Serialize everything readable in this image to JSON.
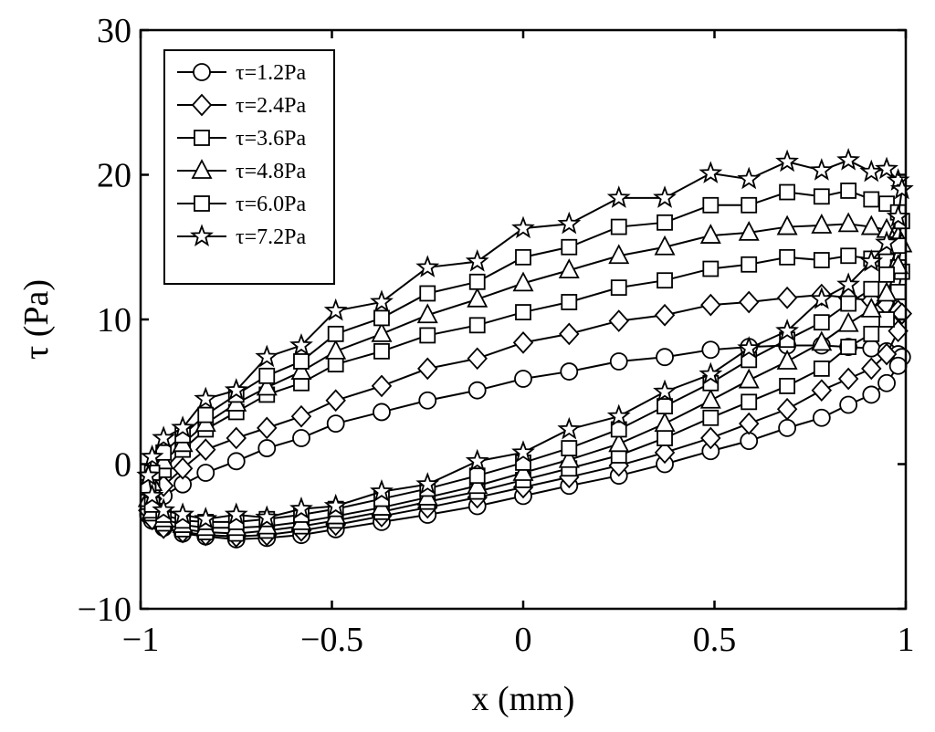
{
  "chart_data": {
    "type": "line",
    "title": "",
    "xlabel": "x (mm)",
    "ylabel": "τ (Pa)",
    "xlim": [
      -1,
      1
    ],
    "ylim": [
      -10,
      30
    ],
    "xticks": [
      -1,
      -0.5,
      0,
      0.5,
      1
    ],
    "xtick_labels": [
      "−1",
      "−0.5",
      "0",
      "0.5",
      "1"
    ],
    "yticks": [
      -10,
      0,
      10,
      20,
      30
    ],
    "ytick_labels": [
      "−10",
      "0",
      "10",
      "20",
      "30"
    ],
    "grid": false,
    "legend_position": "top-left",
    "x": [
      -0.98,
      -0.97,
      -0.94,
      -0.89,
      -0.83,
      -0.75,
      -0.67,
      -0.58,
      -0.49,
      -0.37,
      -0.25,
      -0.12,
      0.0,
      0.12,
      0.25,
      0.37,
      0.49,
      0.59,
      0.69,
      0.78,
      0.85,
      0.91,
      0.95,
      0.98,
      0.99,
      0.98,
      0.95,
      0.91,
      0.85,
      0.78,
      0.69,
      0.59,
      0.49,
      0.37,
      0.25,
      0.12,
      0.0,
      -0.12,
      -0.25,
      -0.37,
      -0.49,
      -0.58,
      -0.67,
      -0.75,
      -0.83,
      -0.89,
      -0.94,
      -0.97,
      -0.98
    ],
    "series": [
      {
        "name": "τ=1.2Pa",
        "marker": "circle",
        "values": [
          -3.5,
          -2.8,
          -2.2,
          -1.4,
          -0.6,
          0.2,
          1.1,
          1.8,
          2.8,
          3.6,
          4.4,
          5.1,
          5.9,
          6.4,
          7.1,
          7.4,
          7.9,
          8.1,
          8.2,
          8.2,
          8.1,
          8.0,
          7.8,
          7.6,
          7.4,
          6.8,
          5.6,
          4.8,
          4.1,
          3.2,
          2.5,
          1.6,
          0.9,
          0.0,
          -0.8,
          -1.5,
          -2.2,
          -2.9,
          -3.5,
          -4.0,
          -4.5,
          -4.9,
          -5.1,
          -5.2,
          -5.0,
          -4.8,
          -4.4,
          -3.9,
          -3.5
        ]
      },
      {
        "name": "τ=2.4Pa",
        "marker": "diamond",
        "values": [
          -3.2,
          -2.4,
          -1.5,
          -0.3,
          1.0,
          1.8,
          2.5,
          3.3,
          4.4,
          5.4,
          6.6,
          7.3,
          8.4,
          9.0,
          9.9,
          10.3,
          11.0,
          11.2,
          11.5,
          11.7,
          11.5,
          11.3,
          11.0,
          10.6,
          10.4,
          9.2,
          7.6,
          6.6,
          5.9,
          5.1,
          3.8,
          2.8,
          1.8,
          0.8,
          -0.1,
          -0.9,
          -1.6,
          -2.3,
          -3.0,
          -3.6,
          -4.2,
          -4.6,
          -4.9,
          -5.0,
          -4.9,
          -4.7,
          -4.4,
          -3.8,
          -3.2
        ]
      },
      {
        "name": "τ=3.6Pa",
        "marker": "square",
        "values": [
          -2.6,
          -1.6,
          -0.4,
          1.0,
          2.4,
          3.6,
          4.8,
          5.6,
          6.9,
          7.8,
          8.9,
          9.6,
          10.5,
          11.2,
          12.2,
          12.7,
          13.5,
          13.8,
          14.3,
          14.1,
          14.4,
          14.2,
          14.0,
          13.6,
          13.3,
          11.9,
          10.0,
          9.0,
          8.1,
          6.6,
          5.4,
          4.3,
          3.2,
          1.8,
          0.6,
          -0.3,
          -1.1,
          -1.9,
          -2.6,
          -3.3,
          -3.9,
          -4.3,
          -4.6,
          -4.8,
          -4.7,
          -4.5,
          -4.1,
          -3.4,
          -2.6
        ]
      },
      {
        "name": "τ=4.8Pa",
        "marker": "triangle",
        "values": [
          -2.4,
          -1.3,
          0.2,
          1.4,
          2.8,
          4.2,
          5.3,
          6.4,
          7.8,
          9.0,
          10.3,
          11.4,
          12.5,
          13.4,
          14.4,
          15.0,
          15.8,
          16.0,
          16.4,
          16.5,
          16.6,
          16.4,
          16.2,
          15.7,
          15.2,
          13.7,
          11.8,
          10.7,
          9.7,
          8.4,
          7.1,
          5.8,
          4.4,
          2.8,
          1.4,
          0.3,
          -0.6,
          -1.5,
          -2.3,
          -3.0,
          -3.6,
          -4.0,
          -4.3,
          -4.4,
          -4.4,
          -4.2,
          -3.8,
          -3.2,
          -2.4
        ]
      },
      {
        "name": "τ=6.0Pa",
        "marker": "square",
        "values": [
          -1.6,
          -0.6,
          0.8,
          2.0,
          3.4,
          4.8,
          6.1,
          7.1,
          9.0,
          10.1,
          11.8,
          12.6,
          14.3,
          15.0,
          16.4,
          16.7,
          17.9,
          17.9,
          18.8,
          18.5,
          18.9,
          18.3,
          18.0,
          17.4,
          16.8,
          15.1,
          13.1,
          12.1,
          11.1,
          9.8,
          8.6,
          7.2,
          5.6,
          4.0,
          2.4,
          1.1,
          0.1,
          -0.8,
          -1.7,
          -2.4,
          -3.1,
          -3.5,
          -3.8,
          -4.0,
          -4.0,
          -3.9,
          -3.5,
          -2.8,
          -1.6
        ]
      },
      {
        "name": "τ=7.2Pa",
        "marker": "star",
        "values": [
          -0.8,
          0.5,
          1.8,
          2.5,
          4.5,
          5.1,
          7.4,
          8.2,
          10.6,
          11.2,
          13.6,
          14.0,
          16.3,
          16.6,
          18.4,
          18.4,
          20.1,
          19.7,
          20.9,
          20.3,
          21.0,
          20.2,
          20.4,
          19.6,
          19.0,
          17.1,
          15.3,
          14.0,
          12.4,
          11.4,
          9.2,
          8.0,
          6.2,
          5.0,
          3.3,
          2.4,
          0.8,
          0.2,
          -1.4,
          -1.9,
          -2.9,
          -3.1,
          -3.7,
          -3.5,
          -3.8,
          -3.5,
          -3.2,
          -2.2,
          -0.8
        ]
      }
    ]
  }
}
